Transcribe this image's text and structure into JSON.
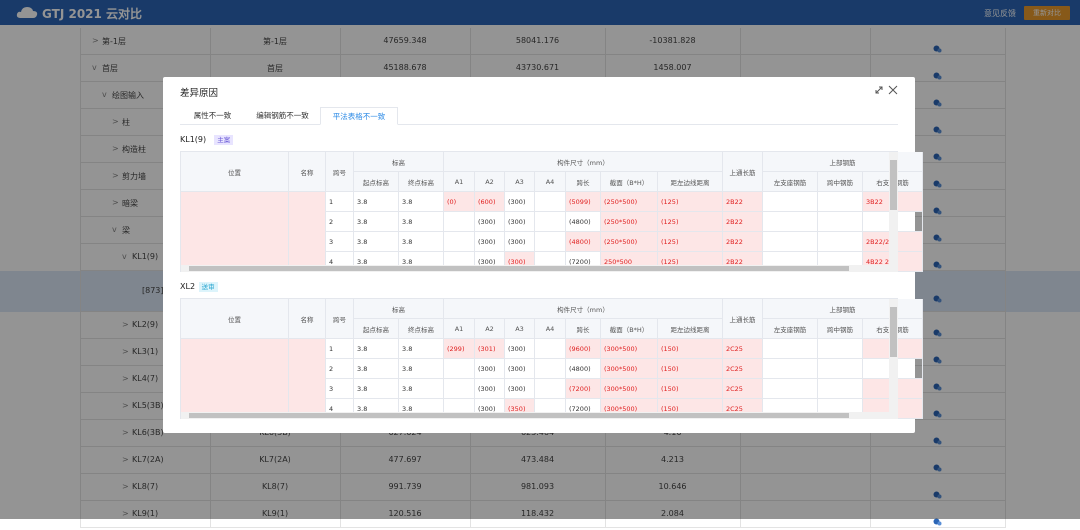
{
  "header": {
    "logo": "GTJ 2021 云对比",
    "feedback": "意见反馈",
    "button": "重新对比"
  },
  "tree": [
    {
      "label": "第-1层",
      "cells": [
        "第-1层",
        "47659.348",
        "58041.176",
        "-10381.828"
      ]
    },
    {
      "label": "首层",
      "cells": [
        "首层",
        "45188.678",
        "43730.671",
        "1458.007"
      ]
    },
    {
      "label": "绘图输入"
    },
    {
      "label": "柱"
    },
    {
      "label": "构造柱"
    },
    {
      "label": "剪力墙"
    },
    {
      "label": "暗梁"
    },
    {
      "label": "梁"
    },
    {
      "label": "KL1(9)"
    },
    {
      "label": "[873]"
    },
    {
      "label": "KL2(9)"
    },
    {
      "label": "KL3(1)"
    },
    {
      "label": "KL4(7)"
    },
    {
      "label": "KL5(3B)"
    },
    {
      "label": "KL6(3B)",
      "cells": [
        "KL6(3B)",
        "627.624",
        "623.464",
        "4.16"
      ]
    },
    {
      "label": "KL7(2A)",
      "cells": [
        "KL7(2A)",
        "477.697",
        "473.484",
        "4.213"
      ]
    },
    {
      "label": "KL8(7)",
      "cells": [
        "KL8(7)",
        "991.739",
        "981.093",
        "10.646"
      ]
    },
    {
      "label": "KL9(1)",
      "cells": [
        "KL9(1)",
        "120.516",
        "118.432",
        "2.084"
      ]
    }
  ],
  "modal": {
    "title": "差异原因",
    "tabs": [
      "属性不一致",
      "编辑钢筋不一致",
      "平法表格不一致"
    ],
    "header_groups": [
      "位置",
      "名称",
      "跨号",
      "标高",
      "构件尺寸（mm）",
      "上通长筋",
      "上部钢筋"
    ],
    "header_sub": [
      "起点标高",
      "终点标高",
      "A1",
      "A2",
      "A3",
      "A4",
      "跨长",
      "截面（B*H）",
      "距左边线距离",
      "左支座钢筋",
      "跨中钢筋",
      "右支座钢筋"
    ],
    "sections": [
      {
        "name": "KL1(9)",
        "tag": "主案",
        "rows": [
          [
            "1",
            "3.8",
            "3.8",
            "(0)",
            "(600)",
            "(300)",
            null,
            "(5099)",
            "(250*500)",
            "(125)",
            "2B22",
            null,
            null,
            "3B22"
          ],
          [
            "2",
            "3.8",
            "3.8",
            null,
            "(300)",
            "(300)",
            null,
            "(4800)",
            "(250*500)",
            "(125)",
            "2B22",
            null,
            null,
            null
          ],
          [
            "3",
            "3.8",
            "3.8",
            null,
            "(300)",
            "(300)",
            null,
            "(4800)",
            "(250*500)",
            "(125)",
            "2B22",
            null,
            null,
            "2B22/2"
          ],
          [
            "4",
            "3.8",
            "3.8",
            null,
            "(300)",
            "(300)",
            null,
            "(7200)",
            "250*500",
            "(125)",
            "2B22",
            null,
            null,
            "4B22 2/"
          ]
        ]
      },
      {
        "name": "XL2",
        "tag": "送审",
        "rows": [
          [
            "1",
            "3.8",
            "3.8",
            "(299)",
            "(301)",
            "(300)",
            null,
            "(9600)",
            "(300*500)",
            "(150)",
            "2C25",
            null,
            null,
            null
          ],
          [
            "2",
            "3.8",
            "3.8",
            null,
            "(300)",
            "(300)",
            null,
            "(4800)",
            "(300*500)",
            "(150)",
            "2C25",
            null,
            null,
            null
          ],
          [
            "3",
            "3.8",
            "3.8",
            null,
            "(300)",
            "(300)",
            null,
            "(7200)",
            "(300*500)",
            "(150)",
            "2C25",
            null,
            null,
            null
          ],
          [
            "4",
            "3.8",
            "3.8",
            null,
            "(300)",
            "(350)",
            null,
            "(7200)",
            "(300*500)",
            "(150)",
            "2C25",
            null,
            null,
            null
          ]
        ]
      }
    ]
  }
}
